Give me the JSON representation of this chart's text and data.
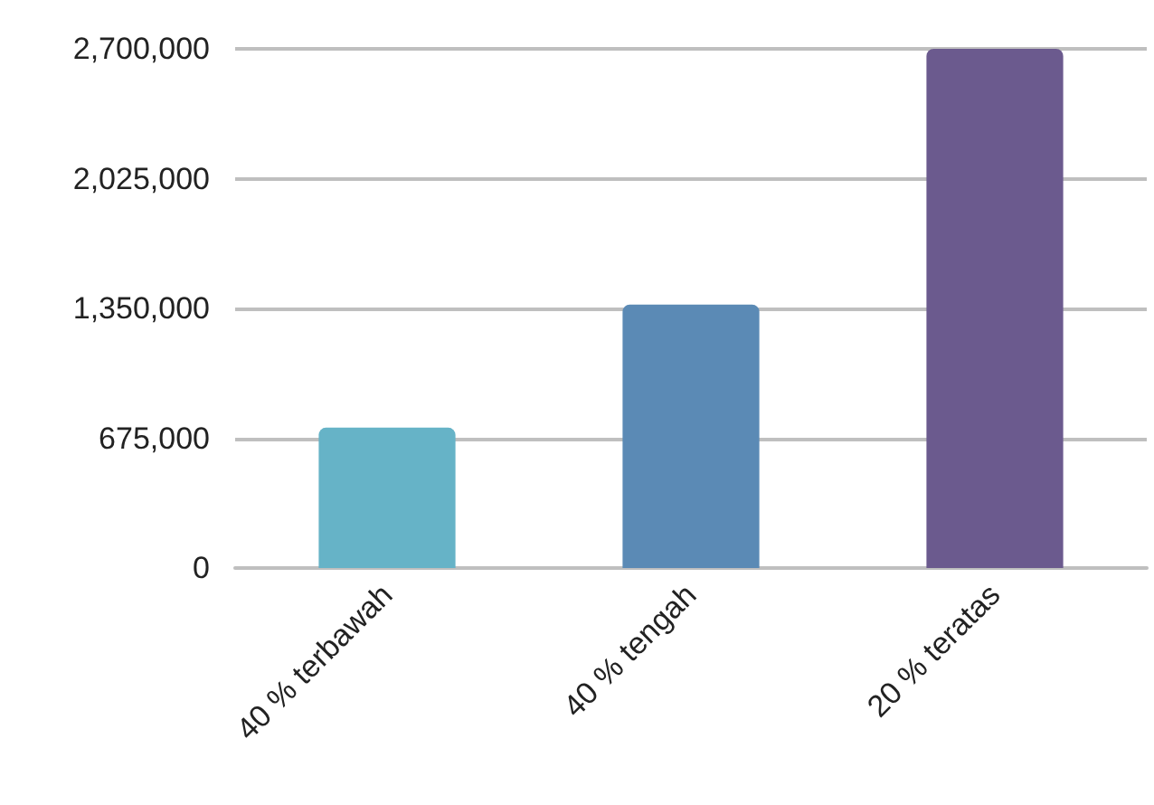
{
  "chart_data": {
    "type": "bar",
    "categories": [
      "40 % terbawah",
      "40 % tengah",
      "20 % teratas"
    ],
    "values": [
      730000,
      1370000,
      2700000
    ],
    "colors": [
      "#66b3c7",
      "#5b8ab5",
      "#6b5a8e"
    ],
    "ylim": [
      0,
      2700000
    ],
    "yticks": [
      0,
      {
        "value": 675000,
        "label": "675,000"
      },
      {
        "value": 1350000,
        "label": "1,350,000"
      },
      {
        "value": 2025000,
        "label": "2,025,000"
      },
      {
        "value": 2700000,
        "label": "2,700,000"
      }
    ],
    "grid": "y"
  }
}
